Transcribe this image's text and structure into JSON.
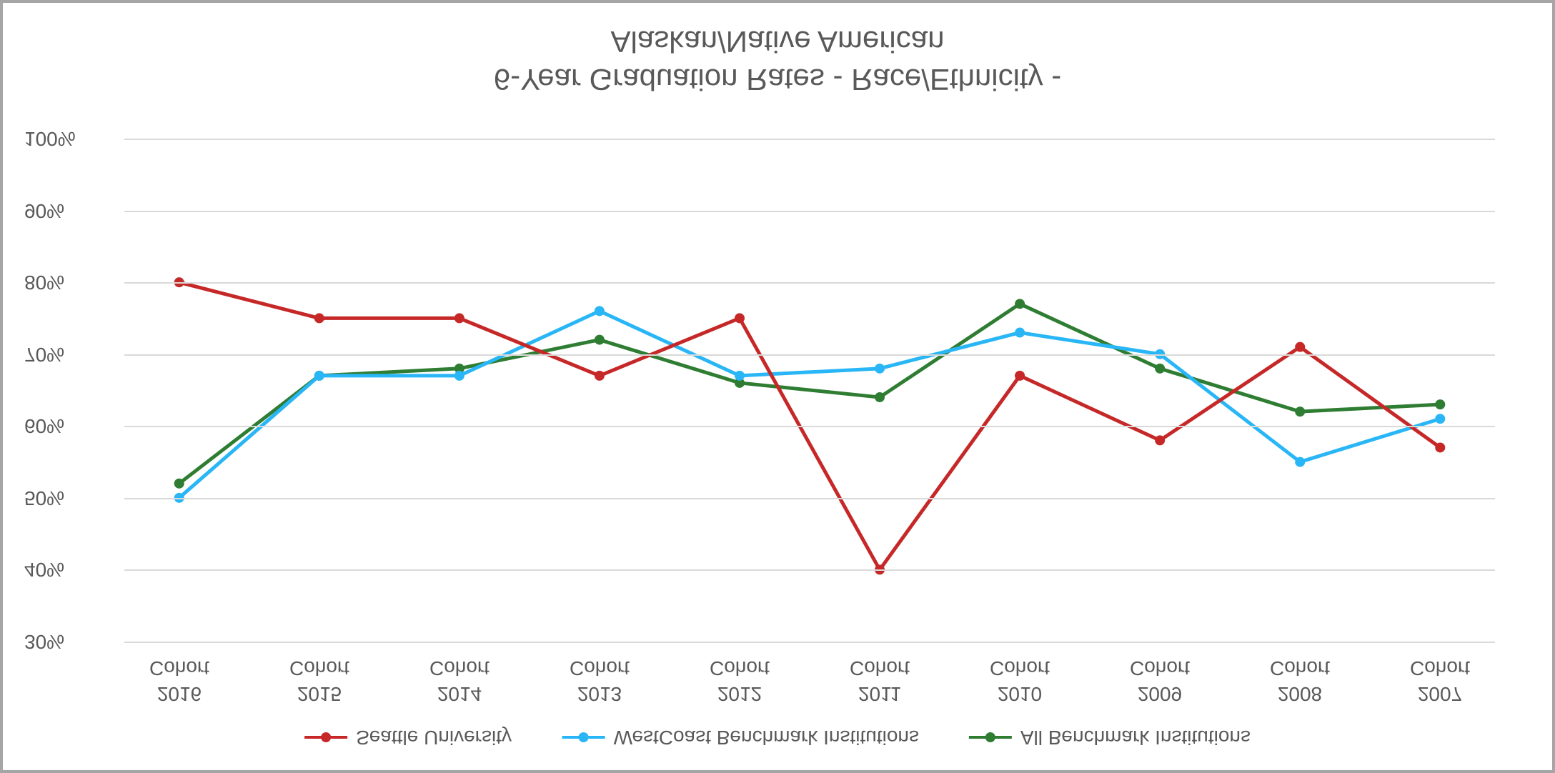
{
  "chart": {
    "type": "line",
    "title_line1": "6-Year Graduation Rates - Race/Ethnicity -",
    "title_line2": "Alaskan/Native American",
    "title_fontsize": 42,
    "title_color": "#595959",
    "background_color": "#ffffff",
    "border_color": "#a6a6a6",
    "grid_color": "#d9d9d9",
    "label_color": "#595959",
    "label_fontsize": 28,
    "ylim": [
      30,
      100
    ],
    "ytick_step": 10,
    "yticks": [
      30,
      40,
      50,
      60,
      70,
      80,
      90,
      100
    ],
    "ytick_labels": [
      "30%",
      "40%",
      "50%",
      "60%",
      "70%",
      "80%",
      "90%",
      "100%"
    ],
    "categories": [
      "2007\nCohort",
      "2008\nCohort",
      "2009\nCohort",
      "2010\nCohort",
      "2011\nCohort",
      "2012\nCohort",
      "2013\nCohort",
      "2014\nCohort",
      "2015\nCohort",
      "2016\nCohort"
    ],
    "series": [
      {
        "name": "All Benchmark Institutions",
        "color": "#2e7d32",
        "line_width": 5,
        "marker_size": 7,
        "values": [
          63,
          62,
          68,
          77,
          64,
          66,
          72,
          68,
          67,
          52
        ]
      },
      {
        "name": "WestCoast Benchmark Institutions",
        "color": "#29b6f6",
        "line_width": 5,
        "marker_size": 7,
        "values": [
          61,
          55,
          70,
          73,
          68,
          67,
          76,
          67,
          67,
          50
        ]
      },
      {
        "name": "Seattle University",
        "color": "#c62828",
        "line_width": 5,
        "marker_size": 7,
        "values": [
          57,
          71,
          58,
          67,
          40,
          75,
          67,
          75,
          75,
          80
        ]
      }
    ]
  }
}
